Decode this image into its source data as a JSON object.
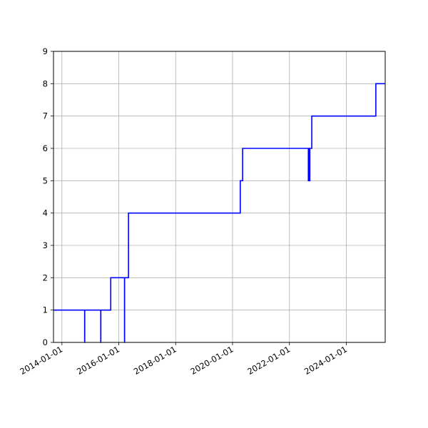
{
  "chart_data": {
    "type": "line",
    "title": "",
    "xlabel": "",
    "ylabel": "",
    "x_axis_type": "date",
    "xlim": [
      "2013-09-15",
      "2025-05-15"
    ],
    "ylim": [
      0,
      9
    ],
    "x_ticks": [
      "2014-01-01",
      "2016-01-01",
      "2018-01-01",
      "2020-01-01",
      "2022-01-01",
      "2024-01-01"
    ],
    "y_ticks": [
      "0",
      "1",
      "2",
      "3",
      "4",
      "5",
      "6",
      "7",
      "8",
      "9"
    ],
    "grid": true,
    "legend": "none",
    "line_style": "step",
    "series": [
      {
        "color": "#0000ff",
        "points": [
          {
            "x": "2013-09-15",
            "y": 1
          },
          {
            "x": "2014-10-20",
            "y": 1
          },
          {
            "x": "2014-10-20",
            "y": 0
          },
          {
            "x": "2014-10-21",
            "y": 0
          },
          {
            "x": "2014-10-21",
            "y": 1
          },
          {
            "x": "2015-05-15",
            "y": 1
          },
          {
            "x": "2015-05-15",
            "y": 0
          },
          {
            "x": "2015-05-16",
            "y": 0
          },
          {
            "x": "2015-05-16",
            "y": 1
          },
          {
            "x": "2015-09-20",
            "y": 1
          },
          {
            "x": "2015-09-20",
            "y": 2
          },
          {
            "x": "2016-03-15",
            "y": 2
          },
          {
            "x": "2016-03-15",
            "y": 0
          },
          {
            "x": "2016-03-16",
            "y": 0
          },
          {
            "x": "2016-03-16",
            "y": 2
          },
          {
            "x": "2016-05-05",
            "y": 2
          },
          {
            "x": "2016-05-05",
            "y": 4
          },
          {
            "x": "2020-04-10",
            "y": 4
          },
          {
            "x": "2020-04-10",
            "y": 5
          },
          {
            "x": "2020-05-10",
            "y": 5
          },
          {
            "x": "2020-05-10",
            "y": 6
          },
          {
            "x": "2022-09-01",
            "y": 6
          },
          {
            "x": "2022-09-01",
            "y": 5
          },
          {
            "x": "2022-09-05",
            "y": 5
          },
          {
            "x": "2022-09-05",
            "y": 6
          },
          {
            "x": "2022-09-15",
            "y": 6
          },
          {
            "x": "2022-09-15",
            "y": 5
          },
          {
            "x": "2022-09-20",
            "y": 5
          },
          {
            "x": "2022-09-20",
            "y": 6
          },
          {
            "x": "2022-10-15",
            "y": 6
          },
          {
            "x": "2022-10-15",
            "y": 7
          },
          {
            "x": "2025-01-15",
            "y": 7
          },
          {
            "x": "2025-01-15",
            "y": 8
          },
          {
            "x": "2025-05-15",
            "y": 8
          }
        ]
      }
    ]
  }
}
